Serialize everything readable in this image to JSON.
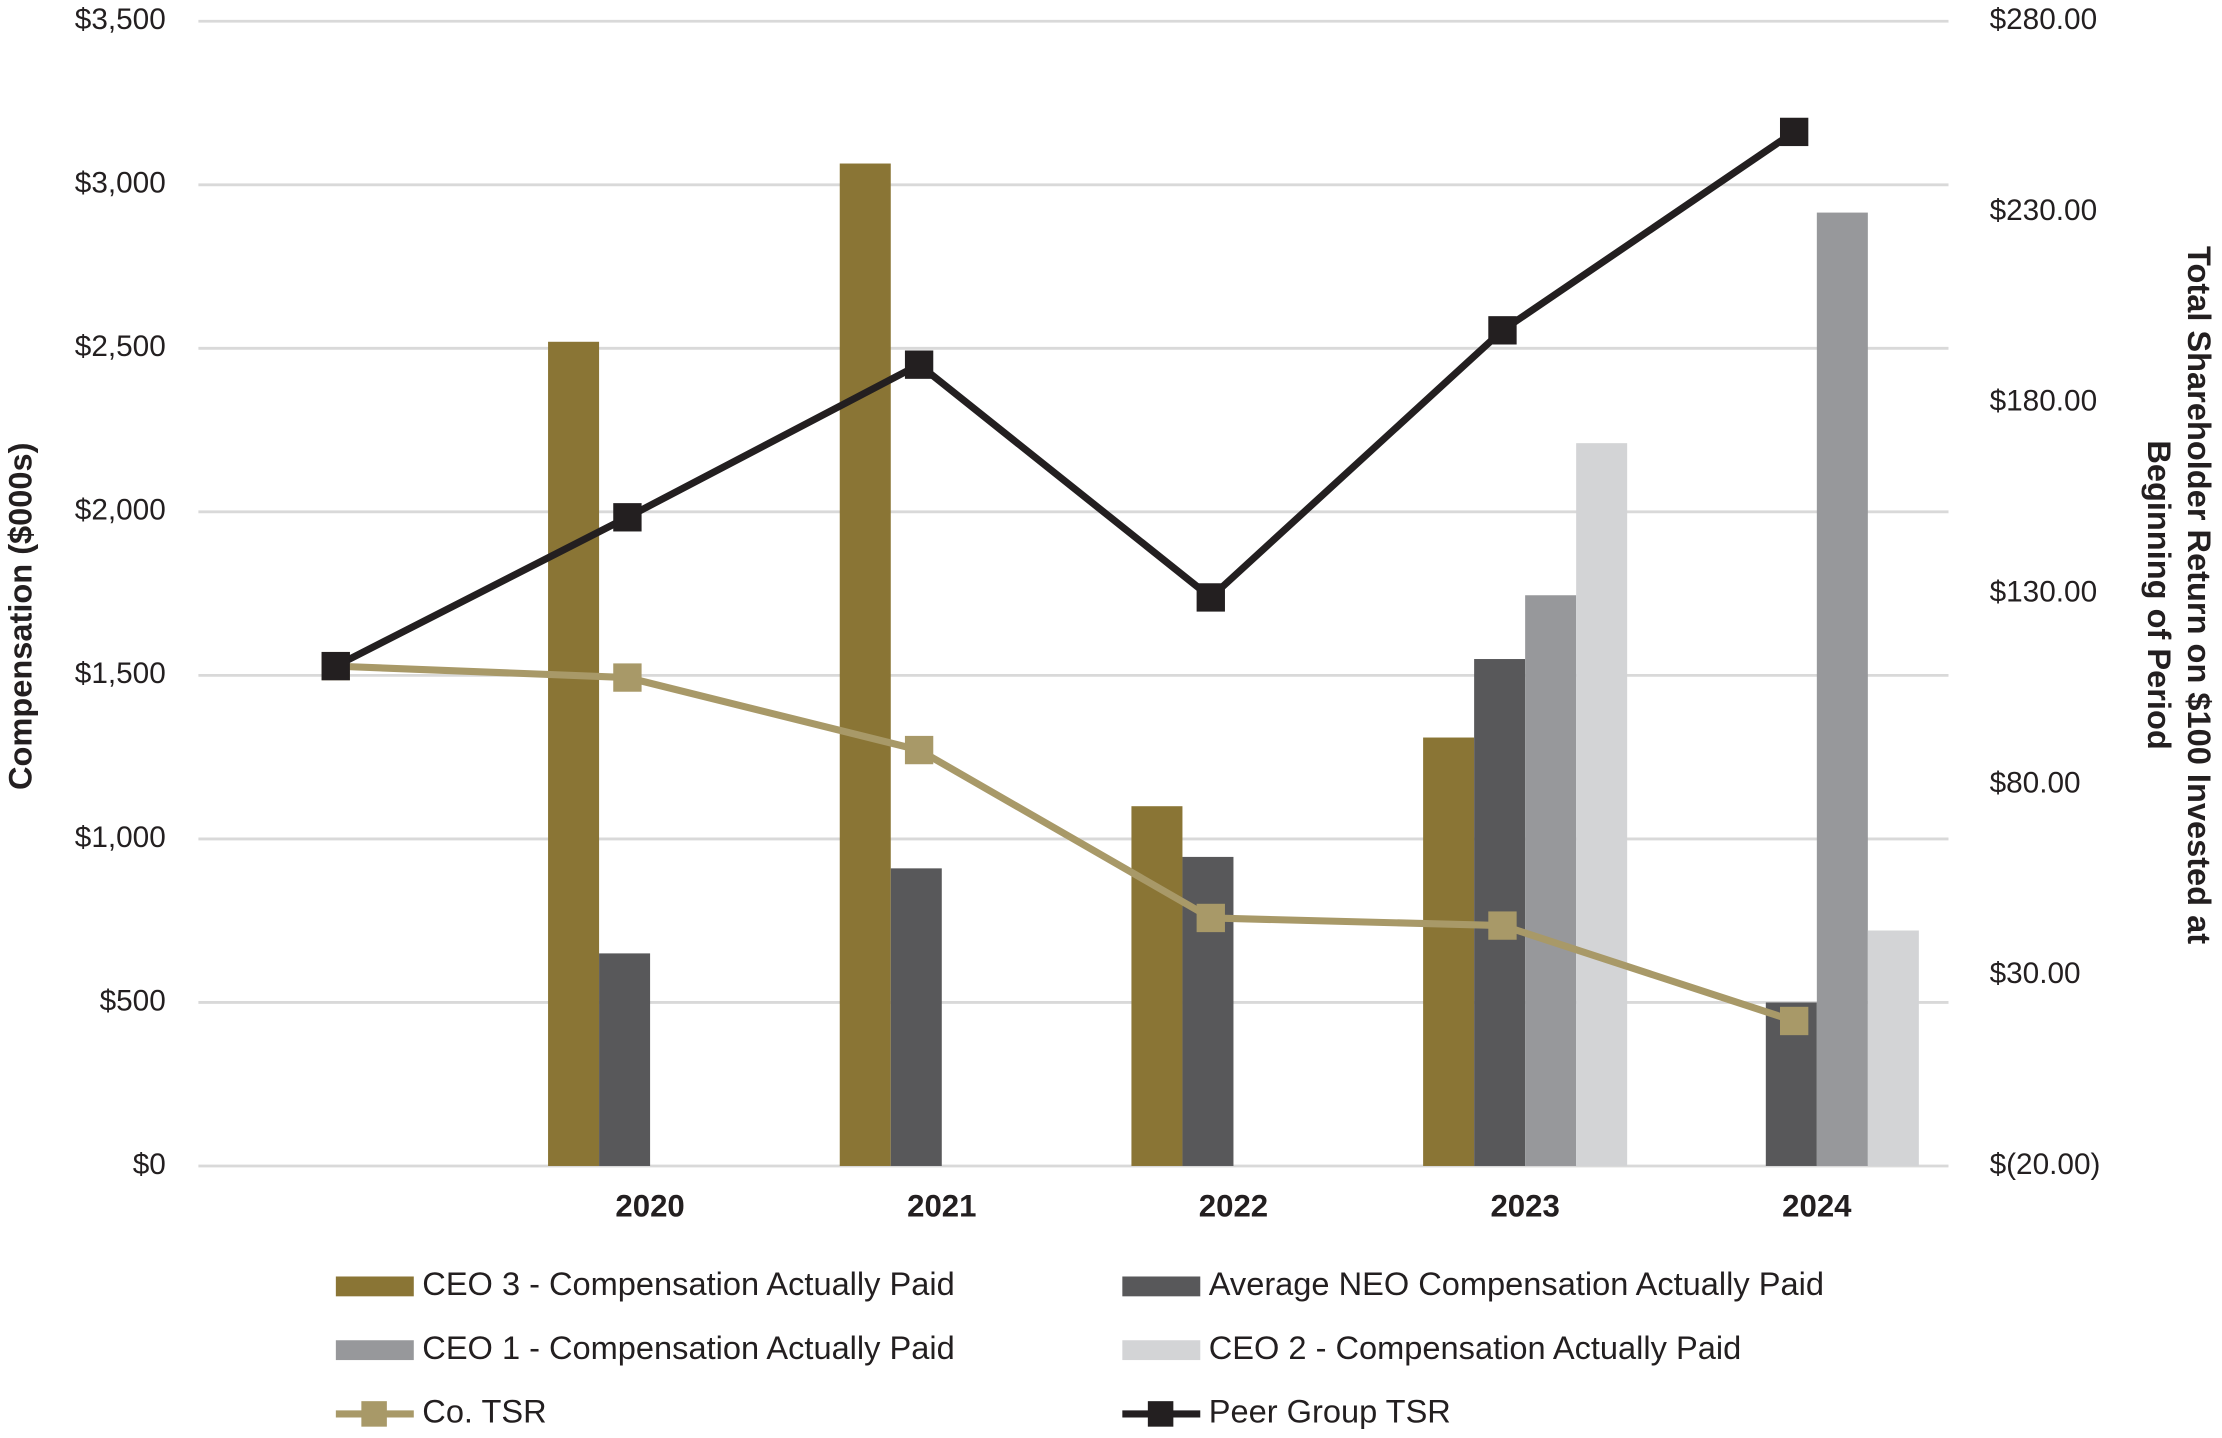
{
  "chart_data": {
    "type": "combo",
    "categories": [
      null,
      "2020",
      "2021",
      "2022",
      "2023",
      "2024"
    ],
    "ylabel": "Compensation ($000s)",
    "y2label": [
      "Total Shareholder Return on $100 Invested at",
      "Beginning of Period"
    ],
    "ylim": [
      0,
      3500
    ],
    "yticks": [
      {
        "value": 0,
        "label": "$0"
      },
      {
        "value": 500,
        "label": "$500"
      },
      {
        "value": 1000,
        "label": "$1,000"
      },
      {
        "value": 1500,
        "label": "$1,500"
      },
      {
        "value": 2000,
        "label": "$2,000"
      },
      {
        "value": 2500,
        "label": "$2,500"
      },
      {
        "value": 3000,
        "label": "$3,000"
      },
      {
        "value": 3500,
        "label": "$3,500"
      }
    ],
    "y2lim": [
      -20,
      280
    ],
    "y2ticks": [
      {
        "value": -20,
        "label": "$(20.00)"
      },
      {
        "value": 30,
        "label": "$30.00"
      },
      {
        "value": 80,
        "label": "$80.00"
      },
      {
        "value": 130,
        "label": "$130.00"
      },
      {
        "value": 180,
        "label": "$180.00"
      },
      {
        "value": 230,
        "label": "$230.00"
      },
      {
        "value": 280,
        "label": "$280.00"
      }
    ],
    "grid": true,
    "legend": "bottom",
    "series": [
      {
        "name": "CEO 3 - Compensation Actually Paid",
        "type": "bar",
        "color": "#8a7535",
        "values": [
          null,
          2520,
          3065,
          1100,
          1310,
          null
        ]
      },
      {
        "name": "Average NEO Compensation Actually Paid",
        "type": "bar",
        "color": "#58585a",
        "values": [
          null,
          650,
          910,
          945,
          1550,
          500
        ]
      },
      {
        "name": "CEO 1 - Compensation Actually Paid",
        "type": "bar",
        "color": "#97989b",
        "values": [
          null,
          null,
          null,
          null,
          1745,
          2915
        ]
      },
      {
        "name": "CEO 2 - Compensation Actually Paid",
        "type": "bar",
        "color": "#d3d4d6",
        "values": [
          null,
          null,
          null,
          null,
          2210,
          720
        ]
      },
      {
        "name": "Co. TSR",
        "type": "line",
        "axis": "y2",
        "color": "#a89968",
        "values": [
          111,
          108,
          89,
          45,
          43,
          18
        ]
      },
      {
        "name": "Peer Group TSR",
        "type": "line",
        "axis": "y2",
        "color": "#231f20",
        "values": [
          111,
          150,
          190,
          129,
          199,
          251
        ]
      }
    ]
  }
}
